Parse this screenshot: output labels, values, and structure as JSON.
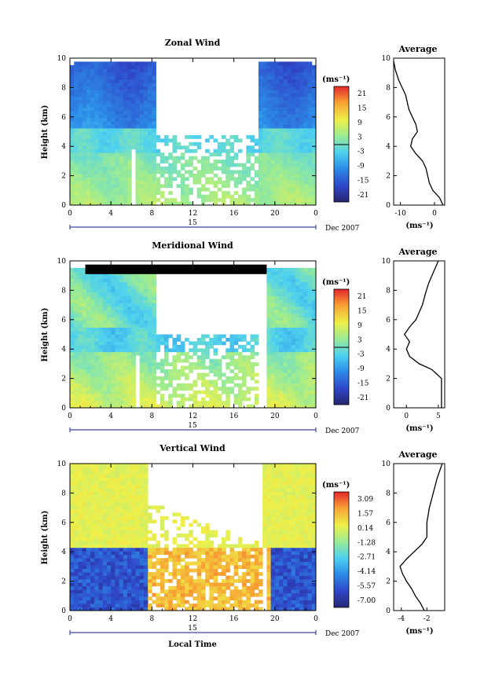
{
  "chart_data": [
    {
      "type": "heatmap",
      "title": "Zonal Wind",
      "xlabel": "",
      "ylabel": "Height (km)",
      "x_ticks": [
        "0",
        "4",
        "8",
        "12",
        "16",
        "20",
        "0"
      ],
      "y_ticks": [
        "0",
        "2",
        "4",
        "6",
        "8",
        "10"
      ],
      "xlim": [
        0,
        24
      ],
      "ylim": [
        0,
        10
      ],
      "date_day": "15",
      "date_label": "Dec 2007",
      "colorbar": {
        "unit": "(ms⁻¹)",
        "ticks": [
          "21",
          "15",
          "9",
          "3",
          "-3",
          "-9",
          "-15",
          "-21"
        ],
        "range": [
          -24,
          24
        ]
      },
      "profile": {
        "title": "Average",
        "xlabel": "(ms⁻¹)",
        "x_ticks": [
          "-10",
          "0"
        ],
        "y_ticks": [
          "0",
          "2",
          "4",
          "6",
          "8",
          "10"
        ],
        "xlim": [
          -12,
          3
        ],
        "points": [
          [
            2.5,
            0
          ],
          [
            1.5,
            0.5
          ],
          [
            -0.5,
            1.0
          ],
          [
            -1.5,
            1.5
          ],
          [
            -2.0,
            2.0
          ],
          [
            -2.5,
            2.5
          ],
          [
            -3.5,
            3.0
          ],
          [
            -5.5,
            3.5
          ],
          [
            -7.0,
            4.0
          ],
          [
            -6.5,
            4.5
          ],
          [
            -5.0,
            5.0
          ],
          [
            -5.5,
            5.5
          ],
          [
            -6.5,
            6.0
          ],
          [
            -7.5,
            6.5
          ],
          [
            -8.0,
            7.0
          ],
          [
            -8.5,
            7.5
          ],
          [
            -9.5,
            8.0
          ],
          [
            -10.5,
            8.5
          ],
          [
            -11.5,
            9.2
          ],
          [
            -12.0,
            9.8
          ]
        ]
      }
    },
    {
      "type": "heatmap",
      "title": "Meridional Wind",
      "xlabel": "",
      "ylabel": "Height (km)",
      "x_ticks": [
        "0",
        "4",
        "8",
        "12",
        "16",
        "20",
        "0"
      ],
      "y_ticks": [
        "0",
        "2",
        "4",
        "6",
        "8",
        "10"
      ],
      "xlim": [
        0,
        24
      ],
      "ylim": [
        0,
        10
      ],
      "date_day": "15",
      "date_label": "Dec 2007",
      "colorbar": {
        "unit": "(ms⁻¹)",
        "ticks": [
          "21",
          "15",
          "9",
          "3",
          "-3",
          "-9",
          "-15",
          "-21"
        ],
        "range": [
          -24,
          24
        ]
      },
      "profile": {
        "title": "Average",
        "xlabel": "(ms⁻¹)",
        "x_ticks": [
          "0",
          "5"
        ],
        "y_ticks": [
          "0",
          "2",
          "4",
          "6",
          "8",
          "10"
        ],
        "xlim": [
          -2,
          6
        ],
        "points": [
          [
            5.5,
            0
          ],
          [
            5.5,
            1.0
          ],
          [
            5.5,
            2.0
          ],
          [
            4.0,
            2.6
          ],
          [
            2.0,
            3.0
          ],
          [
            0.5,
            3.5
          ],
          [
            0.0,
            4.0
          ],
          [
            0.5,
            4.5
          ],
          [
            -0.3,
            5.0
          ],
          [
            0.5,
            5.5
          ],
          [
            1.5,
            6.0
          ],
          [
            2.5,
            7.0
          ],
          [
            3.0,
            7.8
          ],
          [
            3.5,
            8.5
          ],
          [
            4.5,
            9.5
          ],
          [
            5.0,
            10.0
          ]
        ]
      }
    },
    {
      "type": "heatmap",
      "title": "Vertical Wind",
      "xlabel": "Local Time",
      "ylabel": "Height (km)",
      "x_ticks": [
        "0",
        "4",
        "8",
        "12",
        "16",
        "20",
        "0"
      ],
      "y_ticks": [
        "0",
        "2",
        "4",
        "6",
        "8",
        "10"
      ],
      "xlim": [
        0,
        24
      ],
      "ylim": [
        0,
        10
      ],
      "date_day": "15",
      "date_label": "Dec 2007",
      "colorbar": {
        "unit": "(ms⁻¹)",
        "ticks": [
          "3.09",
          "1.57",
          "0.14",
          "-1.28",
          "-2.71",
          "-4.14",
          "-5.57",
          "-7.00"
        ],
        "range": [
          -8,
          3.8
        ]
      },
      "profile": {
        "title": "Average",
        "xlabel": "(ms⁻¹)",
        "x_ticks": [
          "-4",
          "-2"
        ],
        "y_ticks": [
          "0",
          "2",
          "4",
          "6",
          "8",
          "10"
        ],
        "xlim": [
          -4.6,
          -0.6
        ],
        "points": [
          [
            -2.2,
            0
          ],
          [
            -2.5,
            0.5
          ],
          [
            -2.9,
            1.0
          ],
          [
            -3.2,
            1.5
          ],
          [
            -3.6,
            2.0
          ],
          [
            -3.9,
            2.5
          ],
          [
            -4.1,
            3.0
          ],
          [
            -3.6,
            3.5
          ],
          [
            -3.0,
            4.0
          ],
          [
            -2.4,
            4.5
          ],
          [
            -2.0,
            5.0
          ],
          [
            -2.0,
            6.0
          ],
          [
            -1.8,
            7.0
          ],
          [
            -1.5,
            8.0
          ],
          [
            -1.2,
            9.0
          ],
          [
            -0.8,
            10.0
          ]
        ]
      }
    }
  ]
}
